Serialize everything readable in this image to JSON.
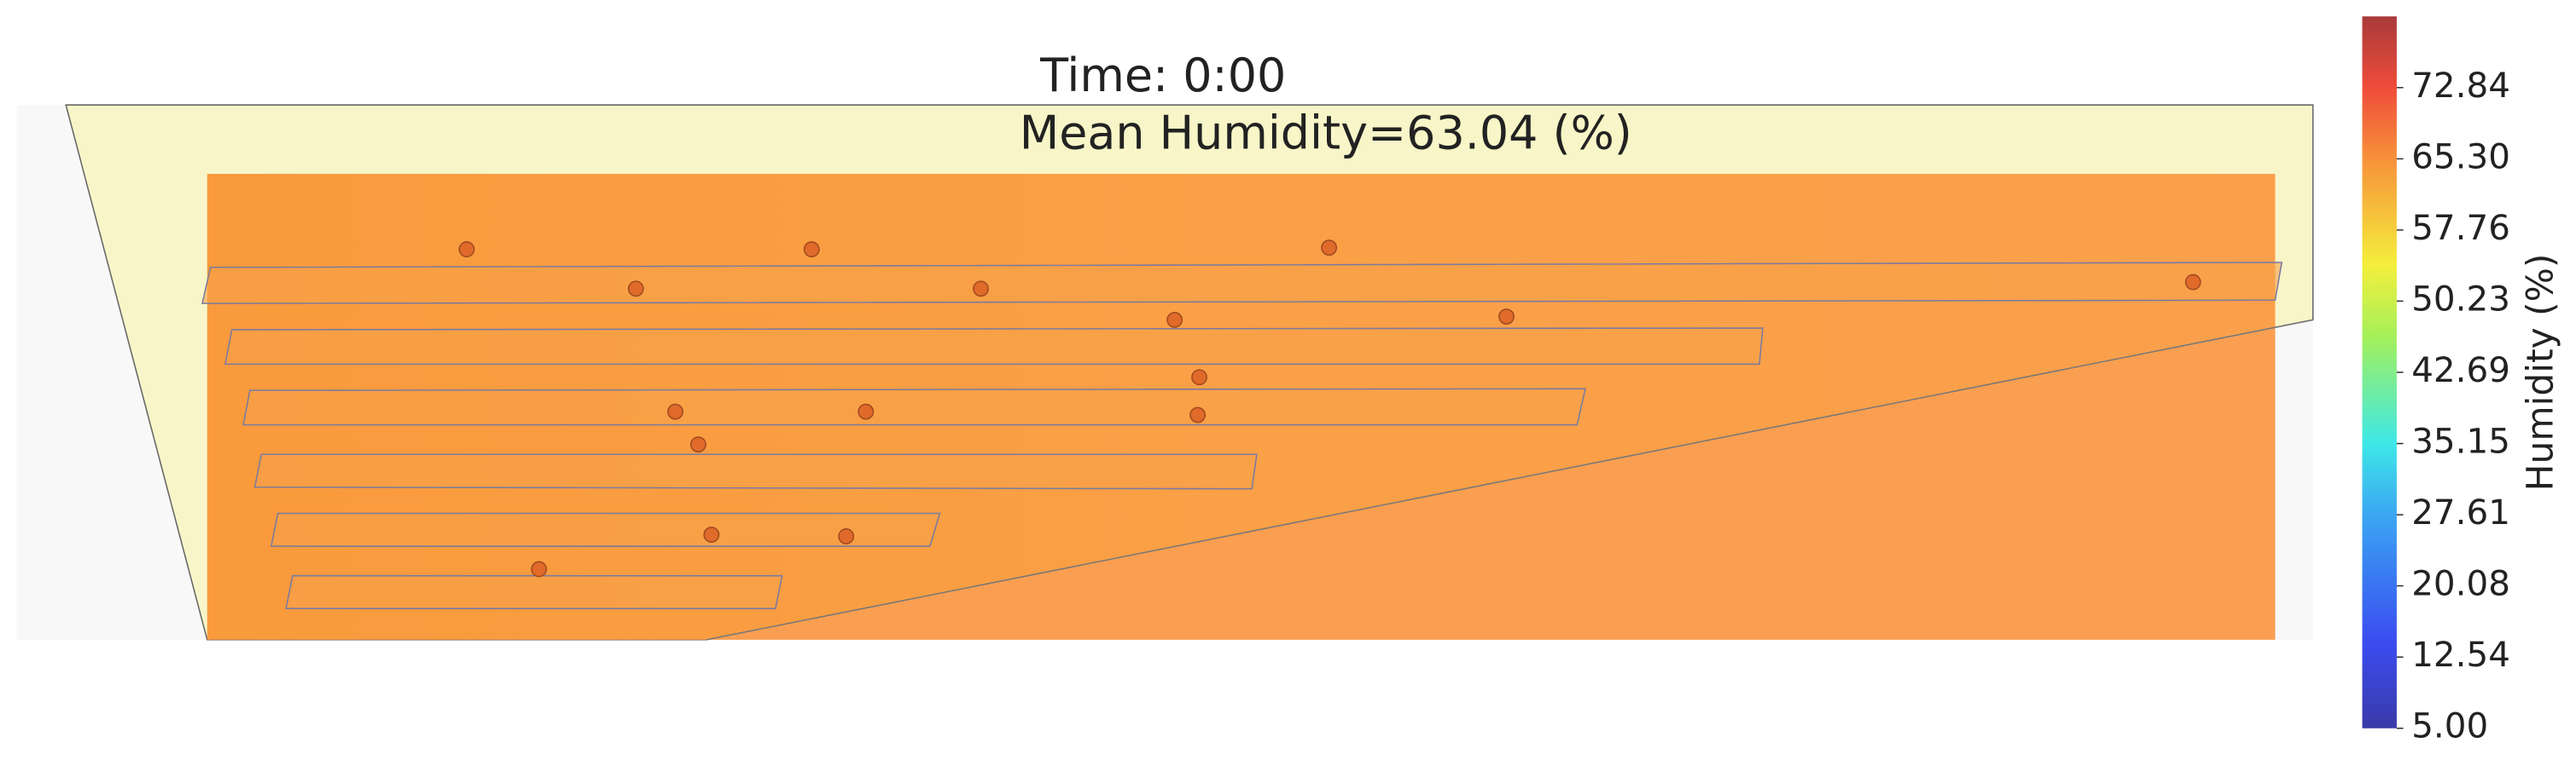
{
  "chart_data": {
    "type": "heatmap",
    "title": "Time: 0:00",
    "subtitle": "Mean Humidity=63.04 (%)",
    "colorbar_label": "Humidity (%)",
    "clim": [
      5,
      80.38
    ],
    "cticks": [
      {
        "value": 5,
        "label": "5.00"
      },
      12.54,
      20.08,
      27.61,
      35.15,
      42.69,
      50.23,
      57.76,
      {
        "value": 65.3,
        "label": "65.30"
      },
      72.84
    ]
  }
}
